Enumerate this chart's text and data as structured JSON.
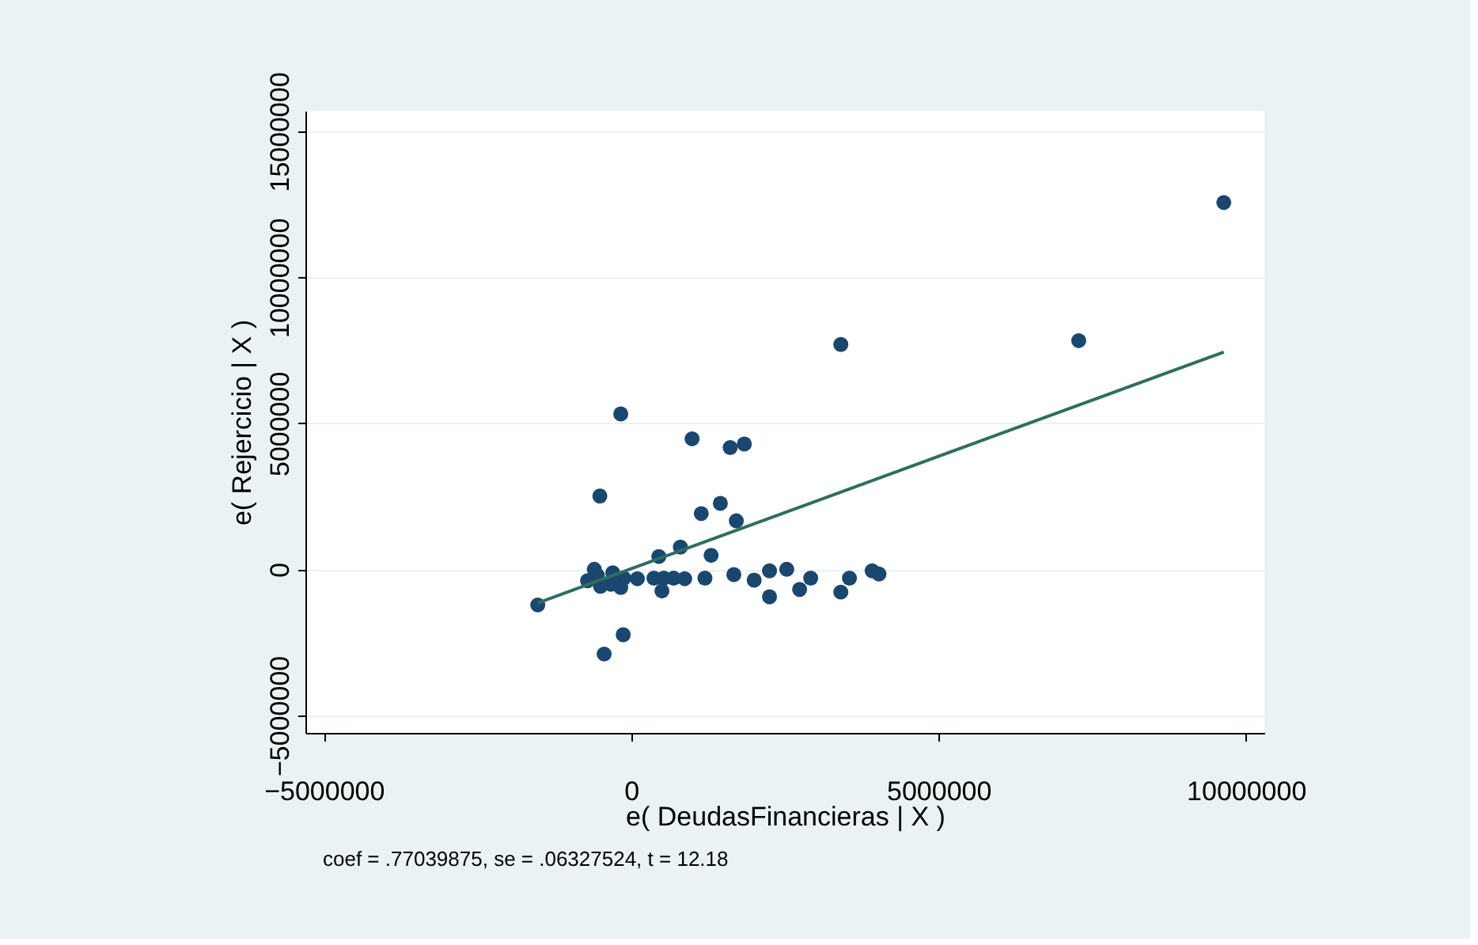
{
  "chart_data": {
    "type": "scatter",
    "xlabel": "e( DeudasFinancieras | X )",
    "ylabel": "e( Rejercicio | X )",
    "annotations": [
      "coef = .77039875, se = .06327524, t = 12.18"
    ],
    "xlim": [
      -5300000,
      10300000
    ],
    "ylim": [
      -5600000,
      15700000
    ],
    "xticks": [
      -5000000,
      0,
      5000000,
      10000000
    ],
    "yticks": [
      -5000000,
      0,
      5000000,
      10000000,
      15000000
    ],
    "grid": "y",
    "series": [
      {
        "marker": "circle",
        "color": "#1a476f",
        "x": [
          -1520000,
          9640000,
          7280000,
          3410000,
          -170000,
          990000,
          1610000,
          1840000,
          -510000,
          1450000,
          1140000,
          1710000,
          800000,
          450000,
          1300000,
          -440000,
          -130000,
          -600000,
          -500000,
          -300000,
          -170000,
          -330000,
          -120000,
          100000,
          370000,
          530000,
          500000,
          690000,
          870000,
          1200000,
          1670000,
          2000000,
          2250000,
          2250000,
          2530000,
          2740000,
          2920000,
          3410000,
          3550000,
          3920000,
          4030000,
          -550000,
          -710000
        ],
        "values": [
          -1220000,
          12560000,
          7830000,
          7700000,
          5320000,
          4470000,
          4170000,
          4290000,
          2510000,
          2260000,
          1910000,
          1660000,
          760000,
          440000,
          480000,
          -2900000,
          -2240000,
          0,
          -580000,
          -120000,
          -620000,
          -510000,
          -300000,
          -320000,
          -300000,
          -300000,
          -740000,
          -300000,
          -320000,
          -300000,
          -180000,
          -370000,
          -50000,
          -940000,
          0,
          -690000,
          -300000,
          -780000,
          -300000,
          -50000,
          -160000,
          -210000,
          -390000
        ]
      },
      {
        "type": "line",
        "marker": "none",
        "line_style": "solid",
        "color": "#2e6e5e",
        "x": [
          -1520000,
          9640000
        ],
        "values": [
          -1150000,
          7440000
        ]
      }
    ]
  }
}
